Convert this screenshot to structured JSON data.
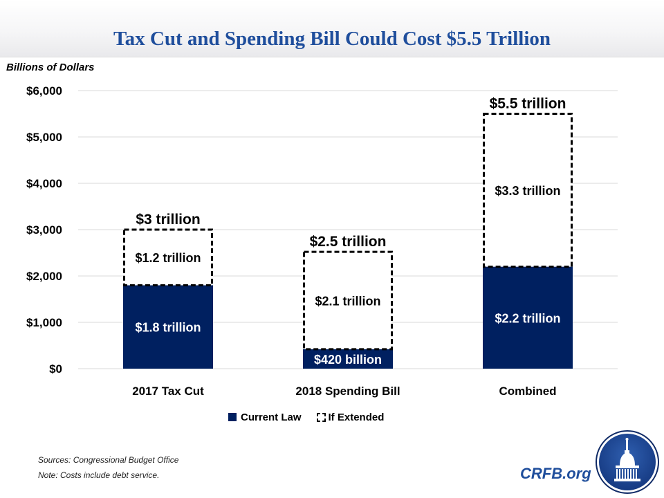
{
  "header": {
    "title": "Tax Cut and Spending Bill Could Cost $5.5 Trillion",
    "units_label": "Billions of Dollars"
  },
  "chart_data": {
    "type": "bar",
    "stacked": true,
    "title": "Tax Cut and Spending Bill Could Cost $5.5 Trillion",
    "xlabel": "",
    "ylabel": "Billions of Dollars",
    "ylim": [
      0,
      6000
    ],
    "yticks": [
      0,
      1000,
      2000,
      3000,
      4000,
      5000,
      6000
    ],
    "ytick_labels": [
      "$0",
      "$1,000",
      "$2,000",
      "$3,000",
      "$4,000",
      "$5,000",
      "$6,000"
    ],
    "grid": true,
    "categories": [
      "2017 Tax Cut",
      "2018 Spending Bill",
      "Combined"
    ],
    "series": [
      {
        "name": "Current Law",
        "style": "solid",
        "color": "#002060",
        "values": [
          1800,
          420,
          2200
        ],
        "labels": [
          "$1.8 trillion",
          "$420 billion",
          "$2.2 trillion"
        ]
      },
      {
        "name": "If Extended",
        "style": "dashed-outline",
        "color": "#000000",
        "values": [
          1200,
          2100,
          3300
        ],
        "labels": [
          "$1.2 trillion",
          "$2.1 trillion",
          "$3.3 trillion"
        ]
      }
    ],
    "totals": [
      3000,
      2500,
      5500
    ],
    "total_labels": [
      "$3 trillion",
      "$2.5 trillion",
      "$5.5 trillion"
    ],
    "legend": {
      "placement": "bottom",
      "entries": [
        "Current Law",
        "If Extended"
      ]
    }
  },
  "footer": {
    "sources": "Sources: Congressional Budget Office",
    "note": "Note: Costs include debt service.",
    "brand": "CRFB.org",
    "logo_icon": "capitol-dome-icon"
  },
  "colors": {
    "title": "#1f4e9c",
    "current_law": "#002060",
    "gridline": "#d9d9d9"
  }
}
